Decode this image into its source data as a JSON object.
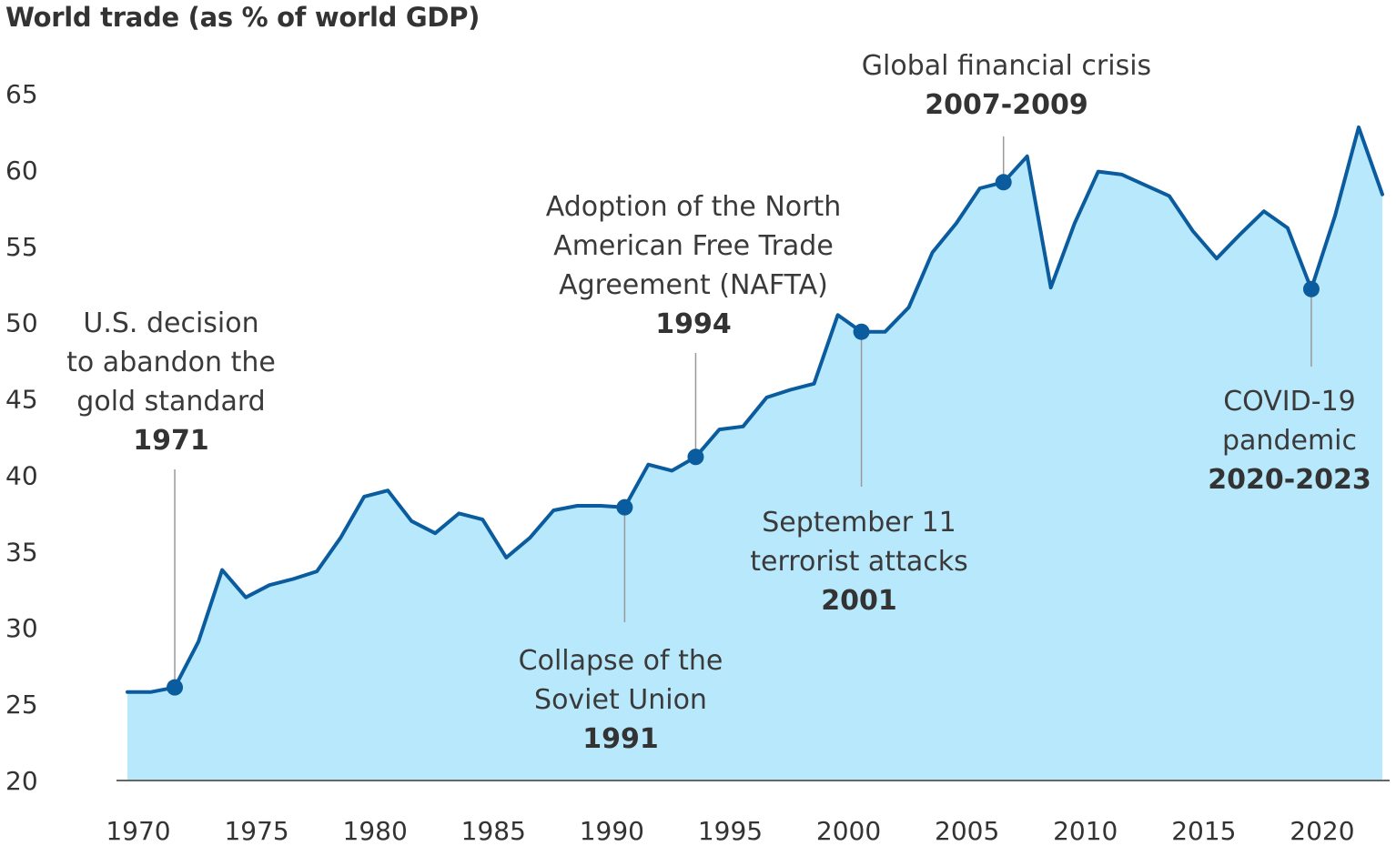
{
  "chart_data": {
    "type": "area",
    "title": "World trade (as % of world GDP)",
    "xlabel": "",
    "ylabel": "",
    "xlim": [
      1970,
      2023
    ],
    "ylim": [
      20,
      65
    ],
    "x_ticks": [
      1970,
      1975,
      1980,
      1985,
      1990,
      1995,
      2000,
      2005,
      2010,
      2015,
      2020
    ],
    "y_ticks": [
      20,
      25,
      30,
      35,
      40,
      45,
      50,
      55,
      60,
      65
    ],
    "grid": false,
    "legend": "none",
    "series": [
      {
        "x": [
          1970,
          1971,
          1972,
          1973,
          1974,
          1975,
          1976,
          1977,
          1978,
          1979,
          1980,
          1981,
          1982,
          1983,
          1984,
          1985,
          1986,
          1987,
          1988,
          1989,
          1990,
          1991,
          1992,
          1993,
          1994,
          1995,
          1996,
          1997,
          1998,
          1999,
          2000,
          2001,
          2002,
          2003,
          2004,
          2005,
          2006,
          2007,
          2008,
          2009,
          2010,
          2011,
          2012,
          2013,
          2014,
          2015,
          2016,
          2017,
          2018,
          2019,
          2020,
          2021,
          2022,
          2023
        ],
        "y": [
          25.8,
          25.8,
          26.1,
          29.1,
          33.8,
          32.0,
          32.8,
          33.2,
          33.7,
          35.9,
          38.6,
          39.0,
          37.0,
          36.2,
          37.5,
          37.1,
          34.6,
          35.9,
          37.7,
          38.0,
          38.0,
          37.9,
          40.7,
          40.3,
          41.2,
          43.0,
          43.2,
          45.1,
          45.6,
          46.0,
          50.5,
          49.4,
          49.4,
          51.0,
          54.6,
          56.5,
          58.8,
          59.2,
          60.9,
          52.3,
          56.5,
          59.9,
          59.7,
          59.0,
          58.3,
          56.0,
          54.2,
          55.8,
          57.3,
          56.2,
          52.2,
          57.0,
          62.8,
          58.4
        ]
      }
    ],
    "annotations": [
      {
        "x": 1972,
        "y": 26.1,
        "lines": [
          "U.S. decision",
          "to abandon the",
          "gold standard"
        ],
        "year": "1971"
      },
      {
        "x": 1991,
        "y": 37.9,
        "lines": [
          "Collapse of the",
          "Soviet Union"
        ],
        "year": "1991"
      },
      {
        "x": 1994,
        "y": 41.2,
        "lines": [
          "Adoption of the North",
          "American Free Trade",
          "Agreement (NAFTA)"
        ],
        "year": "1994"
      },
      {
        "x": 2001,
        "y": 49.4,
        "lines": [
          "September 11",
          "terrorist attacks"
        ],
        "year": "2001"
      },
      {
        "x": 2007,
        "y": 59.2,
        "lines": [
          "Global financial crisis"
        ],
        "year": "2007-2009"
      },
      {
        "x": 2020,
        "y": 52.2,
        "lines": [
          "COVID-19",
          "pandemic"
        ],
        "year": "2020-2023"
      }
    ],
    "colors": {
      "line": "#0a5c9e",
      "fill": "#b8e8fb",
      "marker": "#0a5c9e",
      "leader": "#999999",
      "axis": "#666666"
    }
  }
}
